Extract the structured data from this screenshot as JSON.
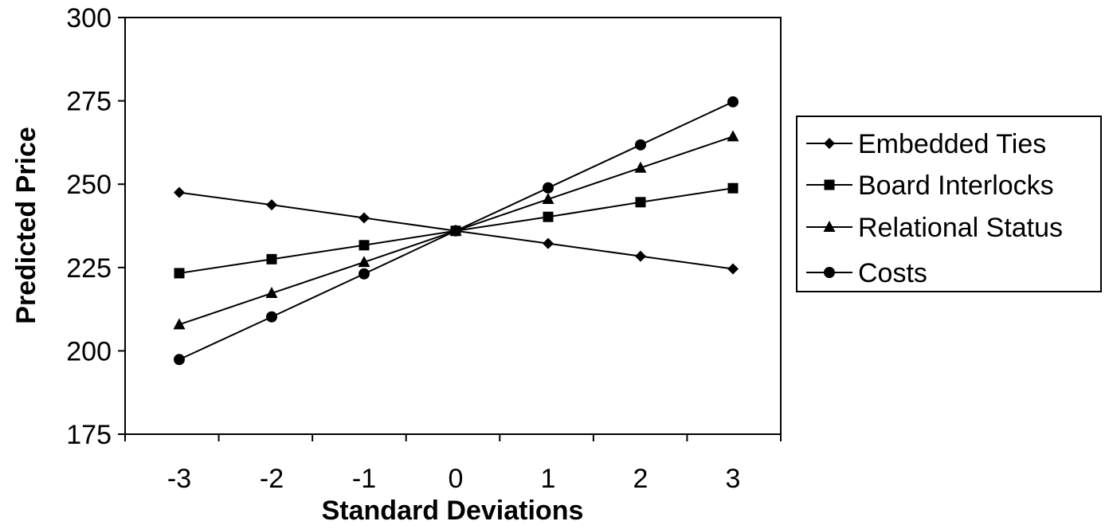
{
  "chart_data": {
    "type": "line",
    "title": "",
    "xlabel": "Standard Deviations",
    "ylabel": "Predicted Price",
    "x": [
      -3,
      -2,
      -1,
      0,
      1,
      2,
      3
    ],
    "x_tick_labels": [
      "-3",
      "-2",
      "-1",
      "0",
      "1",
      "2",
      "3"
    ],
    "ylim": [
      175,
      300
    ],
    "y_ticks": [
      175,
      200,
      225,
      250,
      275,
      300
    ],
    "y_tick_labels": [
      "175",
      "200",
      "225",
      "250",
      "275",
      "300"
    ],
    "grid": false,
    "legend_position": "right",
    "series": [
      {
        "name": "Embedded Ties",
        "marker": "diamond",
        "values": [
          247.5,
          243.8,
          239.9,
          236.0,
          232.2,
          228.4,
          224.6
        ]
      },
      {
        "name": "Board Interlocks",
        "marker": "square",
        "values": [
          223.3,
          227.5,
          231.7,
          236.0,
          240.2,
          244.6,
          248.8
        ]
      },
      {
        "name": "Relational Status",
        "marker": "triangle",
        "values": [
          207.9,
          217.3,
          226.6,
          236.0,
          245.5,
          254.9,
          264.3
        ]
      },
      {
        "name": "Costs",
        "marker": "circle",
        "values": [
          197.4,
          210.2,
          223.1,
          236.0,
          248.9,
          261.8,
          274.7
        ]
      }
    ]
  }
}
